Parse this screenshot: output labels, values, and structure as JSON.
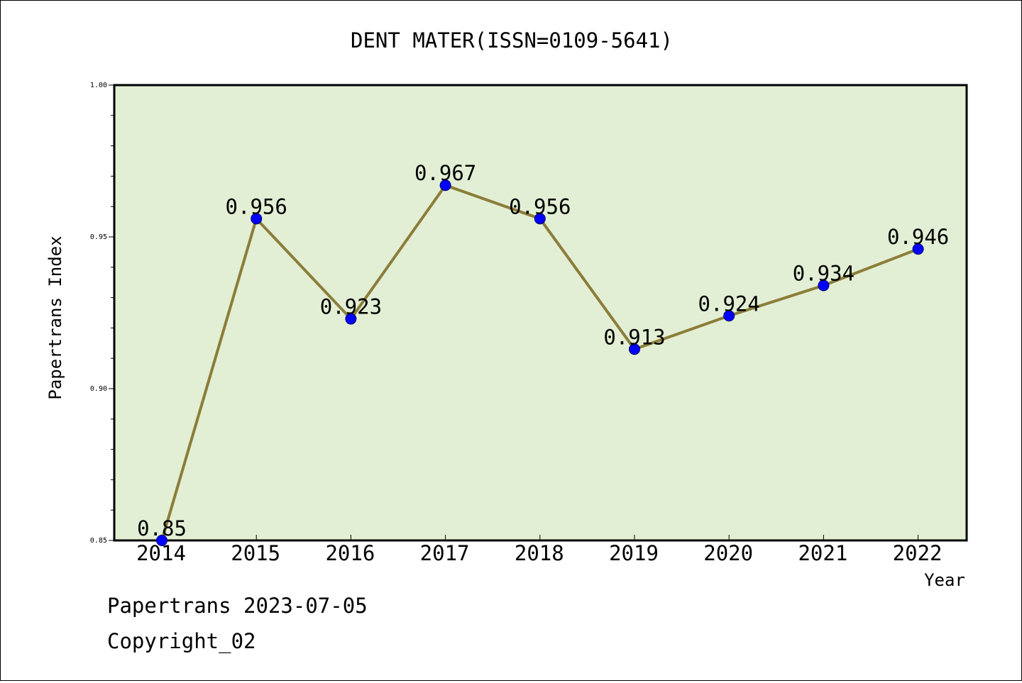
{
  "chart_data": {
    "type": "line",
    "title": "DENT MATER(ISSN=0109-5641)",
    "xlabel": "Year",
    "ylabel": "Papertrans Index",
    "categories": [
      "2014",
      "2015",
      "2016",
      "2017",
      "2018",
      "2019",
      "2020",
      "2021",
      "2022"
    ],
    "values": [
      0.85,
      0.956,
      0.923,
      0.967,
      0.956,
      0.913,
      0.924,
      0.934,
      0.946
    ],
    "data_labels": [
      "0.85",
      "0.956",
      "0.923",
      "0.967",
      "0.956",
      "0.913",
      "0.924",
      "0.934",
      "0.946"
    ],
    "ylim": [
      0.85,
      1.0
    ],
    "yticks": [
      "0.85",
      "0.90",
      "0.95",
      "1.00"
    ],
    "grid": false,
    "legend": "none",
    "colors": {
      "plot_background": "#e2efd4",
      "line": "#8b7d3a",
      "marker": "#0000ff"
    }
  },
  "footer": {
    "line1": "Papertrans 2023-07-05",
    "line2": "Copyright_02"
  }
}
